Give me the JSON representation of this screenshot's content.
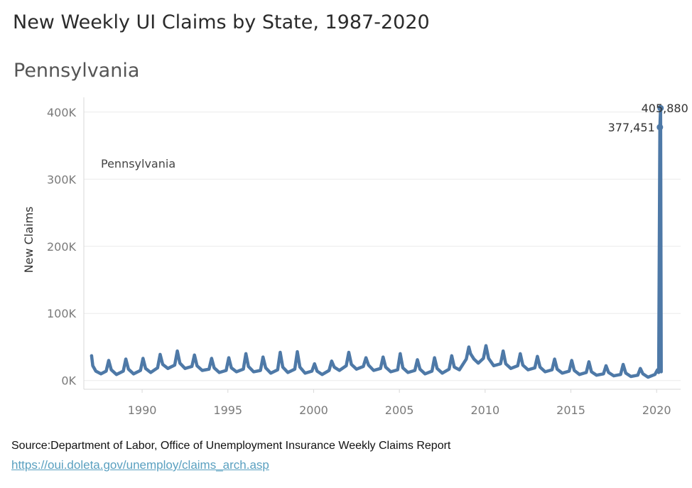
{
  "title": "New Weekly UI Claims by State, 1987-2020",
  "subtitle": "Pennsylvania",
  "source_text": "Source:Department of Labor, Office of Unemployment Insurance Weekly Claims Report",
  "source_link": "https://oui.doleta.gov/unemploy/claims_arch.asp",
  "colors": {
    "line": "#4e79a7",
    "grid": "#ebebeb",
    "axis": "#d9d9d9",
    "tick_text": "#7a7a7a"
  },
  "chart_data": {
    "type": "line",
    "title": "New Weekly UI Claims by State, 1987-2020",
    "subtitle": "Pennsylvania",
    "xlabel": "",
    "ylabel": "New Claims",
    "xlim": [
      1986.6,
      2021.4
    ],
    "ylim": [
      -13000,
      422000
    ],
    "x_ticks": [
      1990,
      1995,
      2000,
      2005,
      2010,
      2015,
      2020
    ],
    "x_tick_labels": [
      "1990",
      "1995",
      "2000",
      "2005",
      "2010",
      "2015",
      "2020"
    ],
    "y_ticks": [
      0,
      100000,
      200000,
      300000,
      400000
    ],
    "y_tick_labels": [
      "0K",
      "100K",
      "200K",
      "300K",
      "400K"
    ],
    "grid": true,
    "legend": "none",
    "series": [
      {
        "name": "Pennsylvania",
        "label_text": "Pennsylvania",
        "points": [
          [
            1987.05,
            37000
          ],
          [
            1987.12,
            22000
          ],
          [
            1987.3,
            14000
          ],
          [
            1987.6,
            10000
          ],
          [
            1987.9,
            14000
          ],
          [
            1988.05,
            30000
          ],
          [
            1988.2,
            16000
          ],
          [
            1988.5,
            9000
          ],
          [
            1988.9,
            14000
          ],
          [
            1989.05,
            32000
          ],
          [
            1989.2,
            17000
          ],
          [
            1989.5,
            10000
          ],
          [
            1989.9,
            15000
          ],
          [
            1990.05,
            33000
          ],
          [
            1990.2,
            18000
          ],
          [
            1990.5,
            12000
          ],
          [
            1990.9,
            19000
          ],
          [
            1991.05,
            39000
          ],
          [
            1991.2,
            24000
          ],
          [
            1991.5,
            18000
          ],
          [
            1991.9,
            23000
          ],
          [
            1992.05,
            44000
          ],
          [
            1992.2,
            26000
          ],
          [
            1992.5,
            18000
          ],
          [
            1992.9,
            21000
          ],
          [
            1993.05,
            38000
          ],
          [
            1993.2,
            22000
          ],
          [
            1993.5,
            15000
          ],
          [
            1993.9,
            17000
          ],
          [
            1994.05,
            33000
          ],
          [
            1994.2,
            19000
          ],
          [
            1994.5,
            12000
          ],
          [
            1994.9,
            15000
          ],
          [
            1995.05,
            34000
          ],
          [
            1995.2,
            19000
          ],
          [
            1995.5,
            13000
          ],
          [
            1995.9,
            17000
          ],
          [
            1996.05,
            40000
          ],
          [
            1996.2,
            21000
          ],
          [
            1996.5,
            13000
          ],
          [
            1996.9,
            15000
          ],
          [
            1997.05,
            35000
          ],
          [
            1997.2,
            19000
          ],
          [
            1997.5,
            11000
          ],
          [
            1997.9,
            16000
          ],
          [
            1998.05,
            42000
          ],
          [
            1998.2,
            20000
          ],
          [
            1998.5,
            12000
          ],
          [
            1998.9,
            17000
          ],
          [
            1999.05,
            43000
          ],
          [
            1999.2,
            20000
          ],
          [
            1999.5,
            11000
          ],
          [
            1999.9,
            14000
          ],
          [
            2000.05,
            25000
          ],
          [
            2000.2,
            14000
          ],
          [
            2000.5,
            9000
          ],
          [
            2000.9,
            15000
          ],
          [
            2001.05,
            29000
          ],
          [
            2001.2,
            20000
          ],
          [
            2001.5,
            15000
          ],
          [
            2001.9,
            22000
          ],
          [
            2002.05,
            42000
          ],
          [
            2002.2,
            24000
          ],
          [
            2002.5,
            17000
          ],
          [
            2002.9,
            21000
          ],
          [
            2003.05,
            34000
          ],
          [
            2003.2,
            23000
          ],
          [
            2003.5,
            15000
          ],
          [
            2003.9,
            18000
          ],
          [
            2004.05,
            35000
          ],
          [
            2004.2,
            20000
          ],
          [
            2004.5,
            13000
          ],
          [
            2004.9,
            16000
          ],
          [
            2005.05,
            40000
          ],
          [
            2005.2,
            19000
          ],
          [
            2005.5,
            12000
          ],
          [
            2005.9,
            15000
          ],
          [
            2006.05,
            31000
          ],
          [
            2006.2,
            17000
          ],
          [
            2006.5,
            10000
          ],
          [
            2006.9,
            14000
          ],
          [
            2007.05,
            34000
          ],
          [
            2007.2,
            18000
          ],
          [
            2007.5,
            11000
          ],
          [
            2007.9,
            17000
          ],
          [
            2008.05,
            37000
          ],
          [
            2008.2,
            20000
          ],
          [
            2008.5,
            16000
          ],
          [
            2008.9,
            32000
          ],
          [
            2009.05,
            50000
          ],
          [
            2009.15,
            40000
          ],
          [
            2009.35,
            32000
          ],
          [
            2009.6,
            26000
          ],
          [
            2009.9,
            33000
          ],
          [
            2010.05,
            52000
          ],
          [
            2010.2,
            33000
          ],
          [
            2010.5,
            22000
          ],
          [
            2010.9,
            25000
          ],
          [
            2011.05,
            44000
          ],
          [
            2011.2,
            25000
          ],
          [
            2011.5,
            18000
          ],
          [
            2011.9,
            22000
          ],
          [
            2012.05,
            40000
          ],
          [
            2012.2,
            23000
          ],
          [
            2012.5,
            16000
          ],
          [
            2012.9,
            19000
          ],
          [
            2013.05,
            36000
          ],
          [
            2013.2,
            20000
          ],
          [
            2013.5,
            13000
          ],
          [
            2013.9,
            16000
          ],
          [
            2014.05,
            32000
          ],
          [
            2014.2,
            17000
          ],
          [
            2014.5,
            11000
          ],
          [
            2014.9,
            14000
          ],
          [
            2015.05,
            30000
          ],
          [
            2015.2,
            15000
          ],
          [
            2015.5,
            9000
          ],
          [
            2015.9,
            12000
          ],
          [
            2016.05,
            28000
          ],
          [
            2016.2,
            13000
          ],
          [
            2016.5,
            8000
          ],
          [
            2016.9,
            10000
          ],
          [
            2017.05,
            22000
          ],
          [
            2017.2,
            12000
          ],
          [
            2017.5,
            7000
          ],
          [
            2017.9,
            9000
          ],
          [
            2018.05,
            24000
          ],
          [
            2018.2,
            11000
          ],
          [
            2018.5,
            6000
          ],
          [
            2018.9,
            8000
          ],
          [
            2019.05,
            18000
          ],
          [
            2019.2,
            10000
          ],
          [
            2019.5,
            5000
          ],
          [
            2019.9,
            9000
          ],
          [
            2020.05,
            16000
          ],
          [
            2020.12,
            12000
          ],
          [
            2020.19,
            377451
          ],
          [
            2020.23,
            405880
          ],
          [
            2020.27,
            13000
          ]
        ],
        "labeled_points": [
          {
            "x": 2020.23,
            "y": 405880,
            "label": "405,880"
          },
          {
            "x": 2020.19,
            "y": 377451,
            "label": "377,451"
          }
        ]
      }
    ]
  }
}
